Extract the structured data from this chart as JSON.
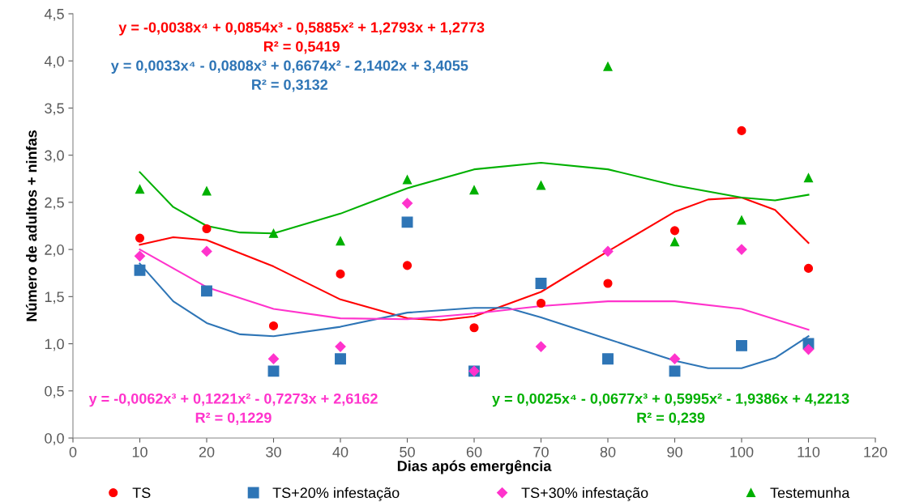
{
  "chart_data": {
    "type": "scatter",
    "xlabel": "Dias após emergência",
    "ylabel": "Número de adultos + ninfas",
    "xlim": [
      0,
      120
    ],
    "xticks": [
      0,
      10,
      20,
      30,
      40,
      50,
      60,
      70,
      80,
      90,
      100,
      110,
      120
    ],
    "ylim": [
      0,
      4.5
    ],
    "yticks": [
      {
        "value": 0,
        "label": "0,0"
      },
      {
        "value": 0.5,
        "label": "0,5"
      },
      {
        "value": 1,
        "label": "1,0"
      },
      {
        "value": 1.5,
        "label": "1,5"
      },
      {
        "value": 2,
        "label": "2,0"
      },
      {
        "value": 2.5,
        "label": "2,5"
      },
      {
        "value": 3,
        "label": "3,0"
      },
      {
        "value": 3.5,
        "label": "3,5"
      },
      {
        "value": 4,
        "label": "4,0"
      },
      {
        "value": 4.5,
        "label": "4,5"
      }
    ],
    "grid": false,
    "legend": "bottom",
    "x": [
      10,
      20,
      30,
      40,
      50,
      60,
      70,
      80,
      90,
      100,
      110
    ],
    "series": [
      {
        "name": "TS",
        "color": "#ff0000",
        "marker": "circle",
        "values": [
          2.12,
          2.22,
          1.19,
          1.74,
          1.83,
          1.17,
          1.43,
          1.64,
          2.2,
          3.26,
          1.8
        ]
      },
      {
        "name": "TS+20% infestação",
        "color": "#2e75b6",
        "marker": "square",
        "values": [
          1.78,
          1.56,
          0.71,
          0.84,
          2.29,
          0.71,
          1.64,
          0.84,
          0.71,
          0.98,
          1.0
        ]
      },
      {
        "name": "TS+30% infestação",
        "color": "#ff33cc",
        "marker": "diamond",
        "values": [
          1.93,
          1.98,
          0.84,
          0.97,
          2.49,
          0.71,
          0.97,
          1.98,
          0.84,
          2.0,
          0.94
        ]
      },
      {
        "name": "Testemunha",
        "color": "#00b000",
        "marker": "triangle",
        "values": [
          2.64,
          2.62,
          2.17,
          2.09,
          2.74,
          2.63,
          2.68,
          3.94,
          2.08,
          2.31,
          2.76
        ]
      },
      {
        "type": "line",
        "color": "#ff0000",
        "x": [
          10,
          15,
          20,
          30,
          40,
          50,
          55,
          60,
          70,
          80,
          90,
          95,
          100,
          105,
          110
        ],
        "values": [
          2.05,
          2.13,
          2.1,
          1.82,
          1.47,
          1.27,
          1.25,
          1.29,
          1.55,
          1.98,
          2.4,
          2.53,
          2.55,
          2.42,
          2.07
        ]
      },
      {
        "type": "line",
        "color": "#2e75b6",
        "x": [
          10,
          15,
          20,
          25,
          30,
          40,
          50,
          60,
          65,
          70,
          80,
          90,
          95,
          100,
          105,
          110
        ],
        "values": [
          1.85,
          1.45,
          1.22,
          1.1,
          1.08,
          1.18,
          1.33,
          1.38,
          1.38,
          1.28,
          1.05,
          0.82,
          0.74,
          0.74,
          0.85,
          1.08
        ]
      },
      {
        "type": "line",
        "color": "#ff33cc",
        "x": [
          10,
          20,
          30,
          40,
          50,
          60,
          70,
          80,
          90,
          100,
          110
        ],
        "values": [
          2.0,
          1.6,
          1.37,
          1.27,
          1.26,
          1.32,
          1.4,
          1.45,
          1.45,
          1.37,
          1.15
        ]
      },
      {
        "type": "line",
        "color": "#00b000",
        "x": [
          10,
          15,
          20,
          25,
          30,
          40,
          50,
          60,
          70,
          80,
          90,
          100,
          105,
          110
        ],
        "values": [
          2.82,
          2.45,
          2.25,
          2.18,
          2.17,
          2.38,
          2.65,
          2.85,
          2.92,
          2.85,
          2.68,
          2.55,
          2.52,
          2.58
        ]
      }
    ],
    "annotations": [
      "y = -0,0038x⁴ + 0,0854x³ - 0,5885x² + 1,2793x + 1,2773",
      "R² = 0,5419",
      "y = 0,0033x⁴ - 0,0808x³ + 0,6674x² - 2,1402x + 3,4055",
      "R² = 0,3132",
      "y = -0,0062x³ + 0,1221x² - 0,7273x + 2,6162",
      "R² = 0,1229",
      "y = 0,0025x⁴ - 0,0677x³ + 0,5995x² - 1,9386x + 4,2213",
      "R² = 0,239"
    ]
  }
}
